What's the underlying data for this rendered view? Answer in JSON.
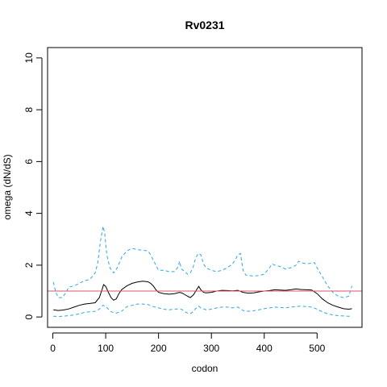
{
  "chart_data": {
    "type": "line",
    "title": "Rv0231",
    "xlabel": "codon",
    "ylabel": "omega (dN/dS)",
    "xlim": [
      -10,
      585
    ],
    "ylim": [
      -0.4,
      10.4
    ],
    "x_ticks": [
      0,
      100,
      200,
      300,
      400,
      500
    ],
    "y_ticks": [
      0,
      2,
      4,
      6,
      8,
      10
    ],
    "grid": false,
    "reference_line": {
      "y": 1,
      "color": "#DF536B"
    },
    "series": [
      {
        "role": "estimate",
        "color": "#000000",
        "style": "solid",
        "points": [
          [
            1,
            0.28
          ],
          [
            10,
            0.25
          ],
          [
            20,
            0.27
          ],
          [
            30,
            0.31
          ],
          [
            40,
            0.38
          ],
          [
            50,
            0.45
          ],
          [
            60,
            0.5
          ],
          [
            70,
            0.52
          ],
          [
            80,
            0.55
          ],
          [
            88,
            0.75
          ],
          [
            93,
            1.05
          ],
          [
            96,
            1.25
          ],
          [
            100,
            1.18
          ],
          [
            105,
            0.95
          ],
          [
            110,
            0.75
          ],
          [
            115,
            0.65
          ],
          [
            120,
            0.7
          ],
          [
            125,
            0.9
          ],
          [
            130,
            1.05
          ],
          [
            140,
            1.2
          ],
          [
            150,
            1.3
          ],
          [
            160,
            1.35
          ],
          [
            170,
            1.38
          ],
          [
            180,
            1.36
          ],
          [
            185,
            1.3
          ],
          [
            190,
            1.2
          ],
          [
            195,
            1.05
          ],
          [
            200,
            0.95
          ],
          [
            210,
            0.9
          ],
          [
            220,
            0.88
          ],
          [
            230,
            0.9
          ],
          [
            240,
            0.95
          ],
          [
            245,
            0.92
          ],
          [
            250,
            0.86
          ],
          [
            255,
            0.8
          ],
          [
            260,
            0.75
          ],
          [
            266,
            0.85
          ],
          [
            272,
            1.05
          ],
          [
            276,
            1.18
          ],
          [
            280,
            1.05
          ],
          [
            285,
            0.95
          ],
          [
            290,
            0.93
          ],
          [
            300,
            0.95
          ],
          [
            310,
            1.0
          ],
          [
            320,
            1.03
          ],
          [
            330,
            1.02
          ],
          [
            340,
            1.01
          ],
          [
            350,
            1.03
          ],
          [
            360,
            0.95
          ],
          [
            370,
            0.92
          ],
          [
            380,
            0.93
          ],
          [
            390,
            0.97
          ],
          [
            400,
            1.0
          ],
          [
            410,
            1.02
          ],
          [
            420,
            1.05
          ],
          [
            430,
            1.04
          ],
          [
            440,
            1.03
          ],
          [
            450,
            1.05
          ],
          [
            460,
            1.08
          ],
          [
            470,
            1.06
          ],
          [
            480,
            1.05
          ],
          [
            490,
            1.04
          ],
          [
            500,
            0.9
          ],
          [
            510,
            0.7
          ],
          [
            520,
            0.55
          ],
          [
            530,
            0.45
          ],
          [
            540,
            0.38
          ],
          [
            550,
            0.32
          ],
          [
            560,
            0.3
          ],
          [
            566,
            0.32
          ]
        ]
      },
      {
        "role": "upper bound",
        "color": "#2FA8E1",
        "style": "dashed",
        "points": [
          [
            1,
            1.35
          ],
          [
            5,
            1.0
          ],
          [
            10,
            0.75
          ],
          [
            18,
            0.75
          ],
          [
            25,
            0.95
          ],
          [
            30,
            1.15
          ],
          [
            40,
            1.2
          ],
          [
            50,
            1.3
          ],
          [
            60,
            1.4
          ],
          [
            70,
            1.45
          ],
          [
            80,
            1.7
          ],
          [
            85,
            2.1
          ],
          [
            90,
            2.9
          ],
          [
            95,
            3.5
          ],
          [
            98,
            3.25
          ],
          [
            102,
            2.4
          ],
          [
            108,
            1.9
          ],
          [
            115,
            1.7
          ],
          [
            122,
            1.9
          ],
          [
            130,
            2.3
          ],
          [
            140,
            2.55
          ],
          [
            150,
            2.65
          ],
          [
            160,
            2.6
          ],
          [
            170,
            2.58
          ],
          [
            180,
            2.55
          ],
          [
            185,
            2.4
          ],
          [
            190,
            2.2
          ],
          [
            195,
            2.0
          ],
          [
            200,
            1.8
          ],
          [
            210,
            1.8
          ],
          [
            220,
            1.75
          ],
          [
            230,
            1.75
          ],
          [
            236,
            1.9
          ],
          [
            240,
            2.15
          ],
          [
            243,
            1.85
          ],
          [
            250,
            1.75
          ],
          [
            255,
            1.65
          ],
          [
            260,
            1.7
          ],
          [
            265,
            1.9
          ],
          [
            270,
            2.25
          ],
          [
            275,
            2.45
          ],
          [
            280,
            2.4
          ],
          [
            285,
            2.05
          ],
          [
            290,
            1.9
          ],
          [
            300,
            1.8
          ],
          [
            310,
            1.75
          ],
          [
            320,
            1.8
          ],
          [
            330,
            1.9
          ],
          [
            340,
            2.05
          ],
          [
            345,
            2.2
          ],
          [
            350,
            2.4
          ],
          [
            355,
            2.45
          ],
          [
            360,
            1.8
          ],
          [
            365,
            1.62
          ],
          [
            370,
            1.6
          ],
          [
            380,
            1.58
          ],
          [
            390,
            1.6
          ],
          [
            400,
            1.65
          ],
          [
            410,
            1.9
          ],
          [
            415,
            2.05
          ],
          [
            420,
            2.0
          ],
          [
            430,
            1.95
          ],
          [
            440,
            1.85
          ],
          [
            450,
            1.9
          ],
          [
            460,
            2.0
          ],
          [
            465,
            2.15
          ],
          [
            470,
            2.1
          ],
          [
            480,
            2.05
          ],
          [
            490,
            2.08
          ],
          [
            495,
            2.1
          ],
          [
            500,
            1.9
          ],
          [
            510,
            1.55
          ],
          [
            520,
            1.2
          ],
          [
            530,
            0.95
          ],
          [
            540,
            0.8
          ],
          [
            550,
            0.75
          ],
          [
            560,
            0.8
          ],
          [
            563,
            1.0
          ],
          [
            566,
            1.2
          ]
        ]
      },
      {
        "role": "lower bound",
        "color": "#2FA8E1",
        "style": "dashed",
        "points": [
          [
            1,
            0.03
          ],
          [
            10,
            0.02
          ],
          [
            20,
            0.03
          ],
          [
            30,
            0.05
          ],
          [
            40,
            0.08
          ],
          [
            50,
            0.12
          ],
          [
            60,
            0.18
          ],
          [
            70,
            0.2
          ],
          [
            80,
            0.22
          ],
          [
            88,
            0.3
          ],
          [
            95,
            0.45
          ],
          [
            100,
            0.42
          ],
          [
            105,
            0.3
          ],
          [
            110,
            0.2
          ],
          [
            120,
            0.15
          ],
          [
            130,
            0.22
          ],
          [
            140,
            0.4
          ],
          [
            150,
            0.45
          ],
          [
            160,
            0.5
          ],
          [
            170,
            0.5
          ],
          [
            180,
            0.48
          ],
          [
            190,
            0.4
          ],
          [
            200,
            0.35
          ],
          [
            210,
            0.3
          ],
          [
            220,
            0.28
          ],
          [
            230,
            0.3
          ],
          [
            240,
            0.32
          ],
          [
            245,
            0.28
          ],
          [
            250,
            0.2
          ],
          [
            255,
            0.15
          ],
          [
            260,
            0.12
          ],
          [
            265,
            0.2
          ],
          [
            270,
            0.32
          ],
          [
            276,
            0.42
          ],
          [
            280,
            0.35
          ],
          [
            290,
            0.28
          ],
          [
            300,
            0.3
          ],
          [
            310,
            0.35
          ],
          [
            320,
            0.38
          ],
          [
            330,
            0.38
          ],
          [
            340,
            0.35
          ],
          [
            350,
            0.38
          ],
          [
            360,
            0.25
          ],
          [
            370,
            0.22
          ],
          [
            380,
            0.24
          ],
          [
            390,
            0.28
          ],
          [
            400,
            0.32
          ],
          [
            410,
            0.35
          ],
          [
            420,
            0.38
          ],
          [
            430,
            0.37
          ],
          [
            440,
            0.35
          ],
          [
            450,
            0.38
          ],
          [
            460,
            0.4
          ],
          [
            470,
            0.42
          ],
          [
            480,
            0.4
          ],
          [
            490,
            0.38
          ],
          [
            500,
            0.3
          ],
          [
            510,
            0.2
          ],
          [
            520,
            0.12
          ],
          [
            530,
            0.08
          ],
          [
            540,
            0.05
          ],
          [
            550,
            0.04
          ],
          [
            560,
            0.03
          ],
          [
            566,
            0.03
          ]
        ]
      }
    ]
  }
}
